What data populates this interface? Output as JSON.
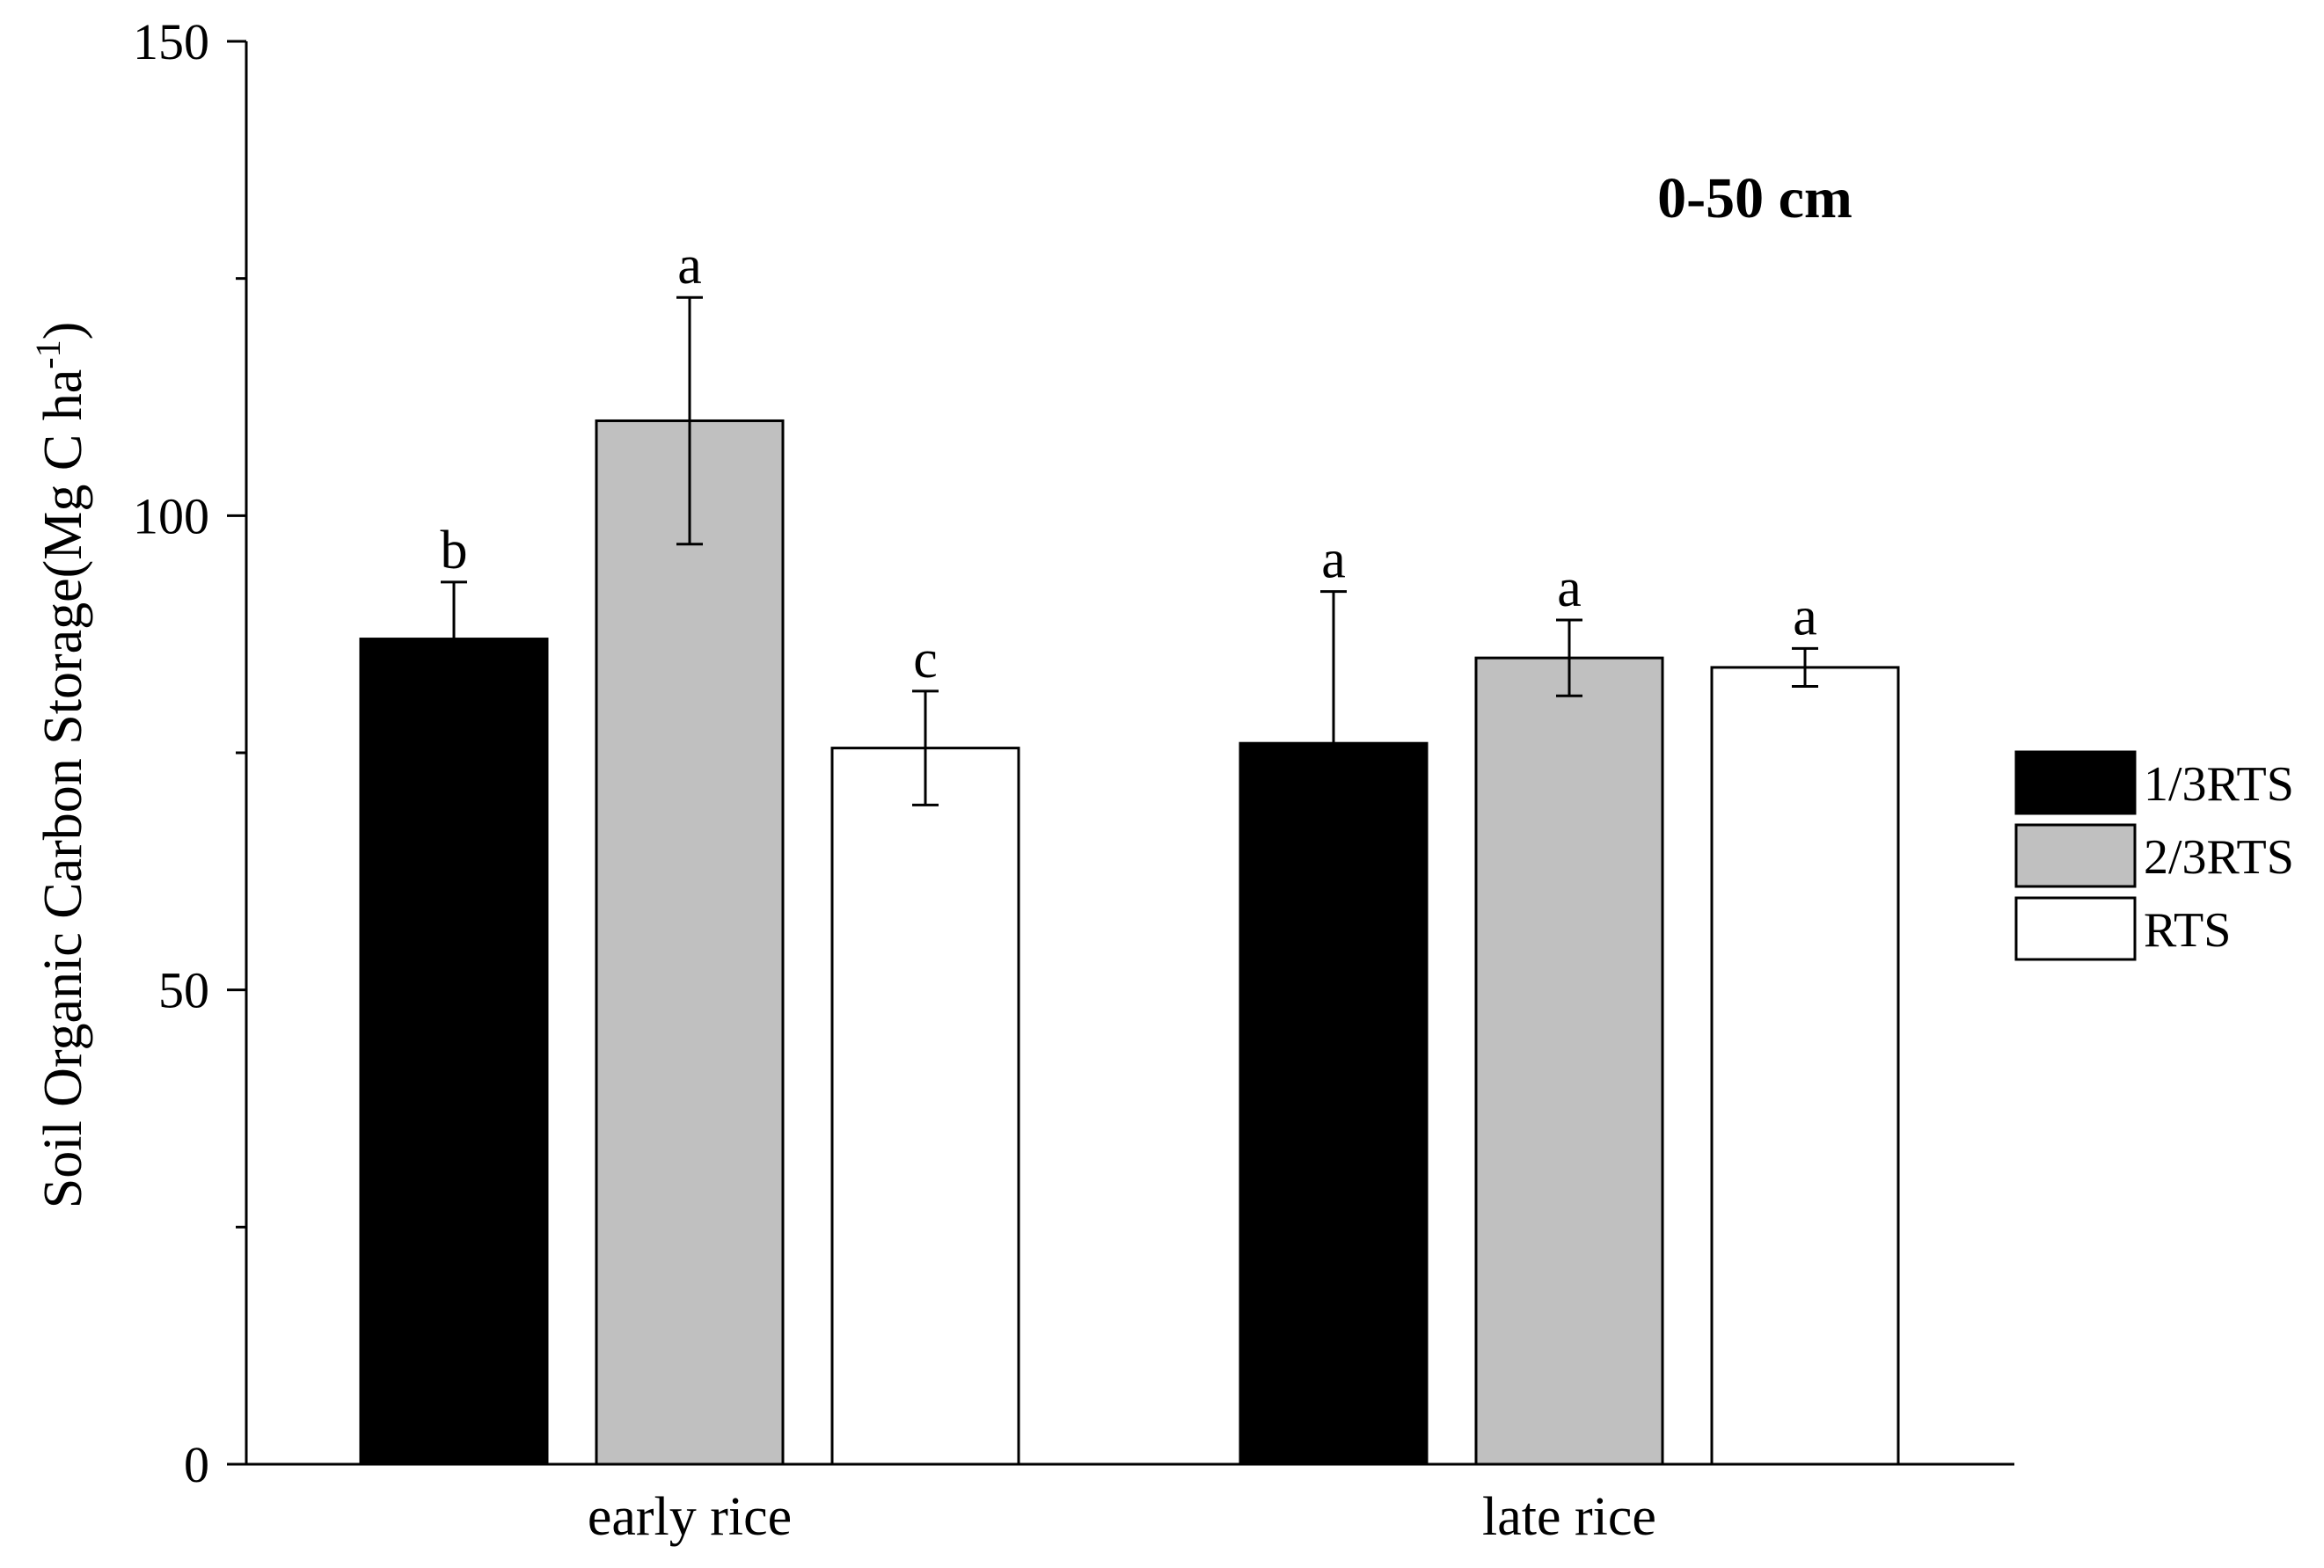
{
  "chart_data": {
    "type": "bar",
    "title": "0-50 cm",
    "xlabel": "",
    "ylabel_main": "Soil Organic Carbon Storage(Mg C ha",
    "ylabel_sup": "-1",
    "ylabel_close": ")",
    "ylim": [
      0,
      150
    ],
    "major_ticks": [
      0,
      50,
      100,
      150
    ],
    "minor_ticks": [
      25,
      75,
      125
    ],
    "grid": false,
    "legend_position": "right",
    "categories": [
      "early rice",
      "late rice"
    ],
    "series": [
      {
        "name": "1/3RTS",
        "color": "#000000",
        "values": [
          87,
          76
        ],
        "errors": [
          6,
          16
        ],
        "letters": [
          "b",
          "a"
        ]
      },
      {
        "name": "2/3RTS",
        "color": "#c0c0c0",
        "values": [
          110,
          85
        ],
        "errors": [
          13,
          4
        ],
        "letters": [
          "a",
          "a"
        ]
      },
      {
        "name": "RTS",
        "color": "#ffffff",
        "values": [
          75.5,
          84
        ],
        "errors": [
          6,
          2
        ],
        "letters": [
          "c",
          "a"
        ]
      }
    ]
  }
}
